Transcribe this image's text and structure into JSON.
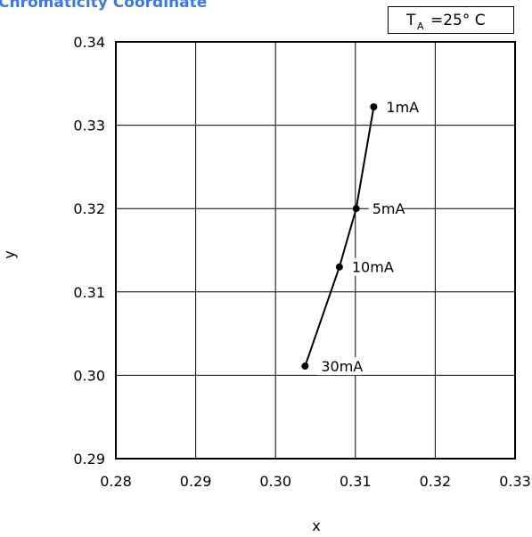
{
  "condition": {
    "symbol": "T",
    "subscript": "A",
    "value": "=25° C"
  },
  "title": "Chromaticity Coordinate",
  "chart_data": {
    "type": "line",
    "title": "Chromaticity Coordinate",
    "xlabel": "x",
    "ylabel": "y",
    "xlim": [
      0.28,
      0.33
    ],
    "ylim": [
      0.29,
      0.34
    ],
    "x_ticks": [
      "0.28",
      "0.29",
      "0.30",
      "0.31",
      "0.32",
      "0.33"
    ],
    "y_ticks": [
      "0.29",
      "0.30",
      "0.31",
      "0.32",
      "0.33",
      "0.34"
    ],
    "grid": true,
    "annotation": "TA=25° C",
    "points": [
      {
        "x": 0.3123,
        "y": 0.3322,
        "label": "1mA"
      },
      {
        "x": 0.3101,
        "y": 0.32,
        "label": "5mA"
      },
      {
        "x": 0.308,
        "y": 0.313,
        "label": "10mA"
      },
      {
        "x": 0.3037,
        "y": 0.3011,
        "label": "30mA"
      }
    ]
  }
}
